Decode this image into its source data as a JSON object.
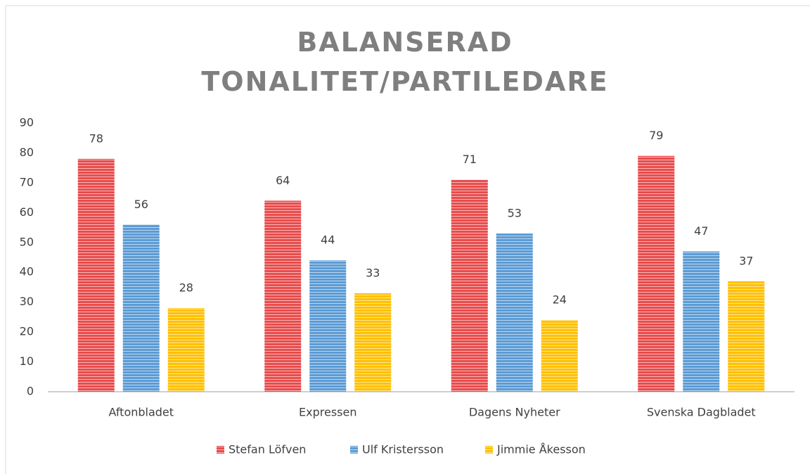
{
  "chart_data": {
    "type": "bar",
    "title": "BALANSERAD TONALITET/PARTILEDARE",
    "categories": [
      "Aftonbladet",
      "Expressen",
      "Dagens Nyheter",
      "Svenska Dagbladet"
    ],
    "series": [
      {
        "name": "Stefan Löfven",
        "color": "#e84c4c",
        "values": [
          78,
          64,
          71,
          79
        ]
      },
      {
        "name": "Ulf Kristersson",
        "color": "#5b9bd5",
        "values": [
          56,
          44,
          53,
          47
        ]
      },
      {
        "name": "Jimmie Åkesson",
        "color": "#ffc000",
        "values": [
          28,
          33,
          24,
          37
        ]
      }
    ],
    "ylim": [
      0,
      90
    ],
    "yticks": [
      0,
      10,
      20,
      30,
      40,
      50,
      60,
      70,
      80,
      90
    ],
    "grid": false,
    "legend": "bottom"
  }
}
